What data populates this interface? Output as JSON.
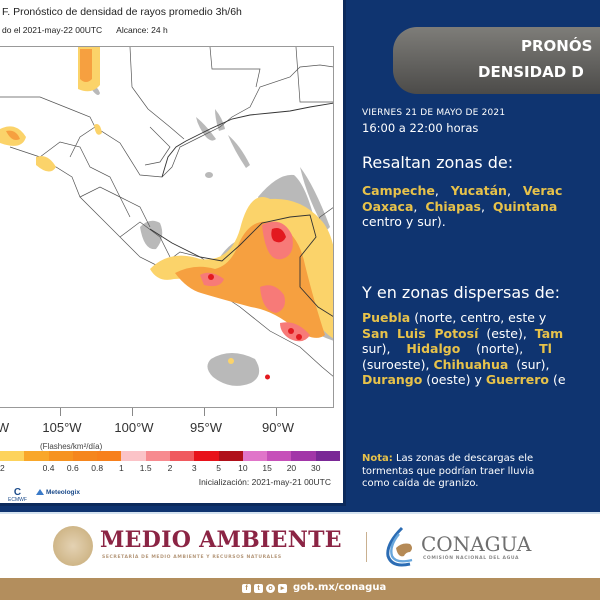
{
  "map": {
    "title": "F. Pronóstico de densidad de rayos promedio 3h/6h",
    "subtitle_valid": "do el 2021-may-22 00UTC",
    "subtitle_range": "Alcance: 24 h",
    "longitude_labels": [
      "W",
      "105°W",
      "100°W",
      "95°W",
      "90°W"
    ],
    "units": "(Flashes/km²/día)",
    "colorbar": {
      "colors": [
        "#fdd35c",
        "#f9a72a",
        "#f69321",
        "#f5861e",
        "#f7801c",
        "#fbc3c7",
        "#f78a8f",
        "#f05a5f",
        "#e8121a",
        "#b0101a",
        "#e075c9",
        "#c650b9",
        "#a236a8",
        "#7a2896"
      ],
      "labels": [
        "2",
        "0.4",
        "0.6",
        "0.8",
        "1",
        "1.5",
        "2",
        "3",
        "5",
        "10",
        "15",
        "20",
        "30"
      ]
    },
    "initialization": "Inicialización: 2021-may-21 00UTC",
    "credits": {
      "ecmwf": "ECMWF",
      "meteologix": "Meteologix"
    }
  },
  "header": {
    "title_line1": "PRONÓS",
    "title_line2": "DENSIDAD D",
    "date": "VIERNES 21 DE MAYO DE 2021",
    "hours": "16:00 a 22:00 horas"
  },
  "highlight": {
    "heading": "Resaltan zonas de:",
    "lines": [
      [
        {
          "t": "Campeche",
          "s": true
        },
        {
          "t": ",   ",
          "s": false
        },
        {
          "t": "Yucatán",
          "s": true
        },
        {
          "t": ",   ",
          "s": false
        },
        {
          "t": "Verac",
          "s": true
        }
      ],
      [
        {
          "t": "Oaxaca",
          "s": true
        },
        {
          "t": ",  ",
          "s": false
        },
        {
          "t": "Chiapas",
          "s": true
        },
        {
          "t": ",  ",
          "s": false
        },
        {
          "t": "Quintana",
          "s": true
        }
      ],
      [
        {
          "t": "centro y sur).",
          "s": false
        }
      ]
    ]
  },
  "scattered": {
    "heading": "Y en zonas dispersas de:",
    "lines": [
      [
        {
          "t": "Puebla",
          "s": true
        },
        {
          "t": " (norte, centro, este y",
          "s": false
        }
      ],
      [
        {
          "t": "San  Luis  Potosí",
          "s": true
        },
        {
          "t": "  (este),  ",
          "s": false
        },
        {
          "t": "Tam",
          "s": true
        }
      ],
      [
        {
          "t": "sur),    ",
          "s": false
        },
        {
          "t": "Hidalgo",
          "s": true
        },
        {
          "t": "    (norte),    ",
          "s": false
        },
        {
          "t": "Tl",
          "s": true
        }
      ],
      [
        {
          "t": "(suroeste), ",
          "s": false
        },
        {
          "t": "Chihuahua",
          "s": true
        },
        {
          "t": "  (sur),",
          "s": false
        }
      ],
      [
        {
          "t": "Durango",
          "s": true
        },
        {
          "t": " (oeste) y ",
          "s": false
        },
        {
          "t": "Guerrero",
          "s": true
        },
        {
          "t": " (e",
          "s": false
        }
      ]
    ]
  },
  "note": {
    "label": "Nota:",
    "line1": " Las  zonas  de  descargas  ele",
    "line2": "tormentas  que  podrían  traer  lluvia",
    "line3": "como caída de granizo."
  },
  "footer": {
    "semarnat_title": "MEDIO AMBIENTE",
    "semarnat_sub": "SECRETARÍA DE MEDIO AMBIENTE Y RECURSOS NATURALES",
    "conagua_title": "CONAGUA",
    "conagua_sub": "COMISIÓN NACIONAL DEL AGUA",
    "social_icons": [
      "facebook-icon",
      "twitter-icon",
      "instagram-icon",
      "youtube-icon"
    ],
    "url": "gob.mx/conagua"
  },
  "colors": {
    "panel_blue": "#0f3470",
    "state_gold": "#e7c24a",
    "semarnat_red": "#8b2444",
    "footer_gold": "#b38e5d"
  }
}
